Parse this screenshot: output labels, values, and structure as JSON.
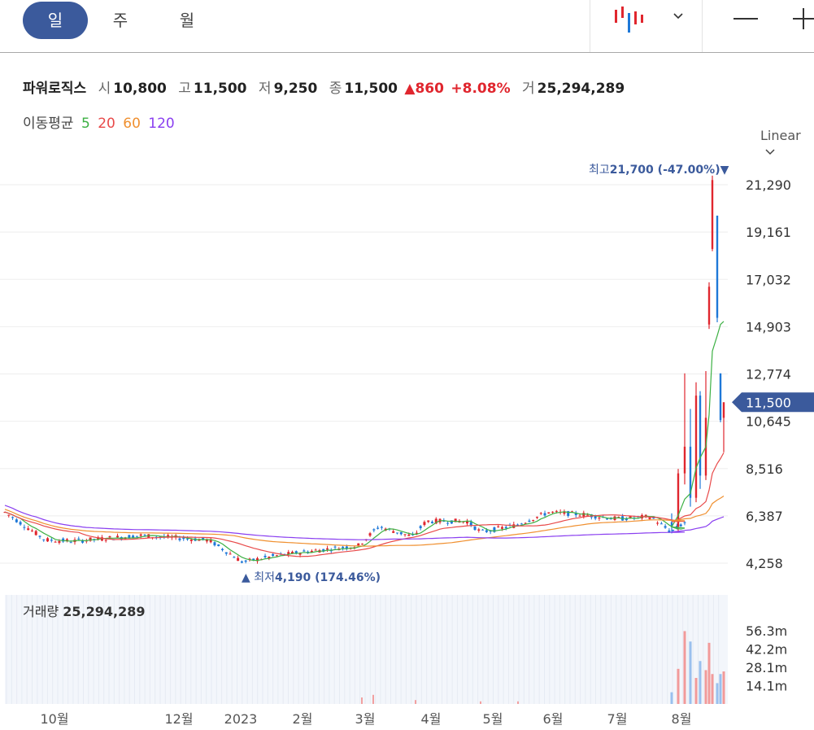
{
  "tabs": [
    {
      "label": "일",
      "active": true
    },
    {
      "label": "주",
      "active": false
    },
    {
      "label": "월",
      "active": false
    }
  ],
  "toolbar": {
    "chart_type_icon": "candlestick-icon",
    "dropdown_icon": "chevron-down-icon",
    "zoom_out_icon": "minus-icon",
    "zoom_in_icon": "plus-icon"
  },
  "stock": {
    "name": "파워로직스",
    "open_label": "시",
    "open": "10,800",
    "high_label": "고",
    "high": "11,500",
    "low_label": "저",
    "low": "9,250",
    "close_label": "종",
    "close": "11,500",
    "change": "▲860",
    "change_pct": "+8.08%",
    "volume_label": "거",
    "volume": "25,294,289"
  },
  "ma_legend": {
    "label": "이동평균",
    "periods": [
      {
        "value": "5",
        "color": "#3cb043"
      },
      {
        "value": "20",
        "color": "#e84a4a"
      },
      {
        "value": "60",
        "color": "#f09030"
      },
      {
        "value": "120",
        "color": "#8a3ff0"
      }
    ]
  },
  "scale_label": "Linear",
  "chart_data": {
    "type": "candlestick",
    "y_ticks": [
      "21,290",
      "19,161",
      "17,032",
      "14,903",
      "12,774",
      "10,645",
      "8,516",
      "6,387",
      "4,258"
    ],
    "y_tick_values": [
      21290,
      19161,
      17032,
      14903,
      12774,
      10645,
      8516,
      6387,
      4258
    ],
    "x_ticks": [
      "10월",
      "12월",
      "2023",
      "2월",
      "3월",
      "4월",
      "5월",
      "6월",
      "7월",
      "8월"
    ],
    "current_price": {
      "label": "11,500",
      "value": 11500
    },
    "high_annotation": {
      "prefix": "최고",
      "value": "21,700",
      "pct": "(-47.00%)",
      "marker": "▼",
      "price": 21700
    },
    "low_annotation": {
      "marker": "▲",
      "prefix": "최저",
      "value": "4,190",
      "pct": "(174.46%)",
      "price": 4190
    },
    "recent_candles": [
      {
        "open": 6100,
        "high": 6500,
        "low": 5600,
        "close": 5900
      },
      {
        "open": 5900,
        "high": 8500,
        "low": 5700,
        "close": 8300
      },
      {
        "open": 8300,
        "high": 12800,
        "low": 7800,
        "close": 9500
      },
      {
        "open": 9500,
        "high": 11200,
        "low": 6800,
        "close": 7200
      },
      {
        "open": 7200,
        "high": 12400,
        "low": 7000,
        "close": 11800
      },
      {
        "open": 11800,
        "high": 12000,
        "low": 7600,
        "close": 8200
      },
      {
        "open": 8200,
        "high": 12900,
        "low": 8000,
        "close": 10800
      },
      {
        "open": 15000,
        "high": 16900,
        "low": 14800,
        "close": 16700
      },
      {
        "open": 18400,
        "high": 21700,
        "low": 18300,
        "close": 21500
      },
      {
        "open": 19900,
        "high": 19900,
        "low": 15100,
        "close": 15300
      },
      {
        "open": 12800,
        "high": 12800,
        "low": 10600,
        "close": 10700
      },
      {
        "open": 10800,
        "high": 11500,
        "low": 9250,
        "close": 11500
      }
    ],
    "volume": {
      "label": "거래량",
      "value": "25,294,289",
      "y_ticks": [
        "56.3m",
        "42.2m",
        "28.1m",
        "14.1m"
      ],
      "y_tick_values": [
        56.3,
        42.2,
        28.1,
        14.1
      ],
      "recent_bars": [
        9,
        27,
        56,
        48,
        20,
        33,
        26,
        47,
        23,
        16,
        23,
        25
      ]
    },
    "colors": {
      "up": "#e0262e",
      "down": "#1e78d8",
      "axis_text": "#333",
      "grid": "#eeeeee",
      "price_tag": "#3b5a9c"
    }
  }
}
